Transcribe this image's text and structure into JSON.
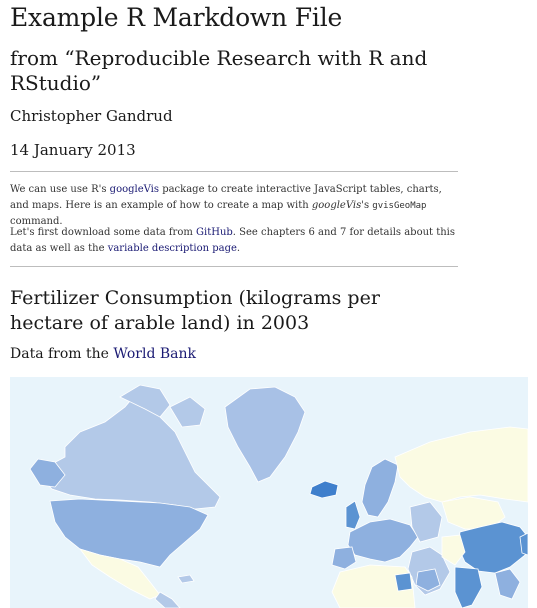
{
  "document": {
    "title": "Example R Markdown File",
    "subtitle": "from “Reproducible Research with R and RStudio”",
    "author": "Christopher Gandrud",
    "date": "14 January 2013"
  },
  "intro": {
    "p1_a": "We can use use R's ",
    "p1_link": "googleVis",
    "p1_b": " package to create interactive JavaScript tables, charts, and maps. Here is an example of how to create a map with ",
    "p1_italic": "googleVis",
    "p1_c": "'s ",
    "p1_code": "gvisGeoMap",
    "p1_d": " command.",
    "p2_a": "Let's first download some data from ",
    "p2_link1": "GitHub",
    "p2_b": ". See chapters 6 and 7 for details about this data as well as the ",
    "p2_link2": "variable description page",
    "p2_c": "."
  },
  "section": {
    "heading": "Fertilizer Consumption (kilograms per hectare of arable land) in 2003",
    "source_prefix": "Data from the ",
    "source_link": "World Bank"
  },
  "map": {
    "ocean_color": "#e8f4fb",
    "nodata_color": "#fbfbe3",
    "low_color": "#b3c9e8",
    "mid_color": "#8eb0df",
    "high_color": "#5b93d2",
    "greenland_color": "#a8c1e6",
    "iceland_color": "#3f7fcc",
    "border_color": "#ffffff"
  }
}
